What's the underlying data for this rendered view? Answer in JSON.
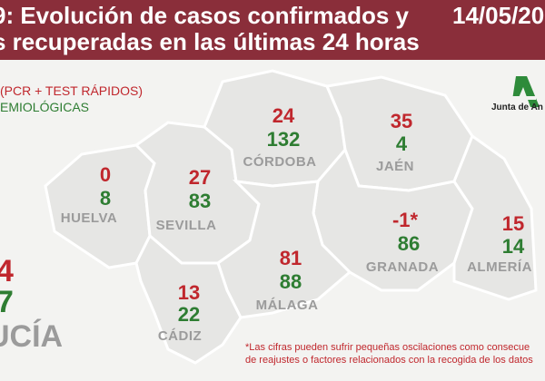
{
  "header": {
    "title_line1": "9: Evolución de casos confirmados y",
    "title_line2": "s recuperadas en las últimas 24 horas",
    "date": "14/05/20"
  },
  "legend": {
    "confirmed": "(PCR + TEST RÁPIDOS)",
    "recovered": "EMIOLÓGICAS"
  },
  "logo": {
    "text": "Junta de An"
  },
  "provinces": [
    {
      "name": "HUELVA",
      "confirmed": "0",
      "recovered": "8"
    },
    {
      "name": "SEVILLA",
      "confirmed": "27",
      "recovered": "83"
    },
    {
      "name": "CÓRDOBA",
      "confirmed": "24",
      "recovered": "132"
    },
    {
      "name": "JAÉN",
      "confirmed": "35",
      "recovered": "4"
    },
    {
      "name": "GRANADA",
      "confirmed": "-1*",
      "recovered": "86"
    },
    {
      "name": "ALMERÍA",
      "confirmed": "15",
      "recovered": "14"
    },
    {
      "name": "MÁLAGA",
      "confirmed": "81",
      "recovered": "88"
    },
    {
      "name": "CÁDIZ",
      "confirmed": "13",
      "recovered": "22"
    }
  ],
  "total": {
    "confirmed": "4",
    "recovered": "7",
    "region": "UCÍA"
  },
  "footnote": {
    "line1": "*Las cifras pueden sufrir pequeñas oscilaciones como consecue",
    "line2": "de reajustes o factores relacionados con la recogida de los datos"
  },
  "colors": {
    "header": "#8a2e3a",
    "confirmed": "#c0272d",
    "recovered": "#2e7d32",
    "map_fill": "#e6e6e4",
    "border": "#ffffff"
  }
}
